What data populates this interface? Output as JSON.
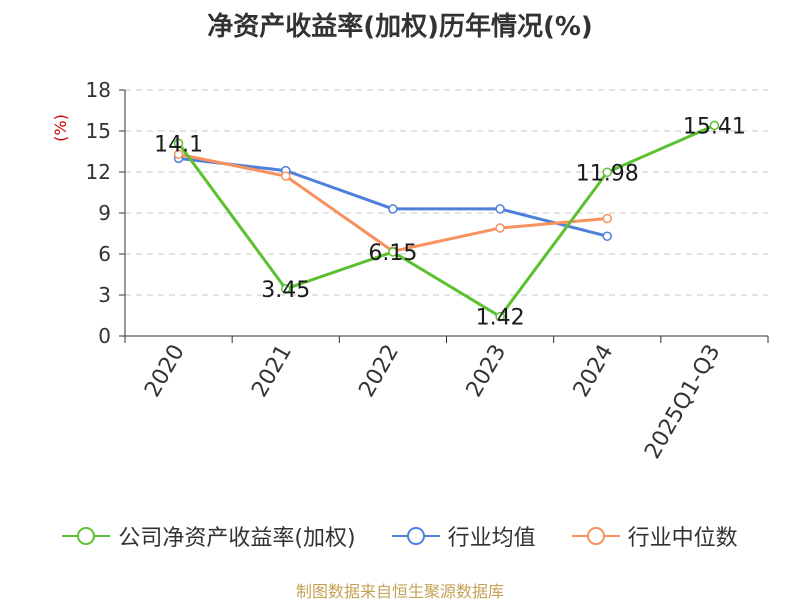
{
  "chart_data": {
    "type": "line",
    "title": "净资产收益率(加权)历年情况(%)",
    "ylabel": "(%)",
    "xlabel": "",
    "categories": [
      "2020",
      "2021",
      "2022",
      "2023",
      "2024",
      "2025Q1-Q3"
    ],
    "ylim": [
      0,
      18
    ],
    "yticks": [
      0,
      3,
      6,
      9,
      12,
      15,
      18
    ],
    "grid": true,
    "legend_position": "bottom",
    "series": [
      {
        "name": "公司净资产收益率(加权)",
        "color": "#5cc131",
        "values": [
          14.1,
          3.45,
          6.15,
          1.42,
          11.98,
          15.41
        ],
        "labels": [
          "14.1",
          "3.45",
          "6.15",
          "1.42",
          "11.98",
          "15.41"
        ]
      },
      {
        "name": "行业均值",
        "color": "#4e7fdb",
        "values": [
          13.0,
          12.1,
          9.3,
          9.3,
          7.3,
          null
        ]
      },
      {
        "name": "行业中位数",
        "color": "#f7925e",
        "values": [
          13.3,
          11.7,
          6.2,
          7.9,
          8.6,
          null
        ]
      }
    ]
  },
  "footer": {
    "source": "制图数据来自恒生聚源数据库"
  }
}
